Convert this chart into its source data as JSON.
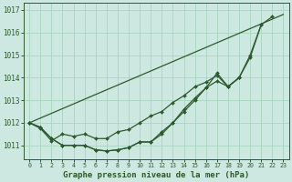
{
  "title": "Graphe pression niveau de la mer (hPa)",
  "background_color": "#cce8e0",
  "grid_color": "#aad4c0",
  "line_color": "#2d5a2d",
  "marker_color": "#2d5a2d",
  "xlim": [
    -0.5,
    23.5
  ],
  "ylim": [
    1010.4,
    1017.3
  ],
  "yticks": [
    1011,
    1012,
    1013,
    1014,
    1015,
    1016,
    1017
  ],
  "xticks": [
    0,
    1,
    2,
    3,
    4,
    5,
    6,
    7,
    8,
    9,
    10,
    11,
    12,
    13,
    14,
    15,
    16,
    17,
    18,
    19,
    20,
    21,
    22,
    23
  ],
  "series": [
    {
      "x": [
        0,
        1,
        2,
        3,
        4,
        5,
        6,
        7,
        8,
        9,
        10,
        11,
        12,
        13,
        14,
        15,
        16,
        17,
        18,
        19,
        20,
        21,
        22
      ],
      "y": [
        1012.0,
        1011.8,
        1011.3,
        1011.0,
        1011.0,
        1011.0,
        1010.8,
        1010.75,
        1010.8,
        1010.9,
        1011.15,
        1011.15,
        1011.5,
        1012.0,
        1012.5,
        1013.0,
        1013.55,
        1013.85,
        1013.6,
        1014.0,
        1015.0,
        1016.35,
        1016.7
      ]
    },
    {
      "x": [
        0,
        1,
        2,
        3,
        4,
        5,
        6,
        7,
        8,
        9,
        10,
        11,
        12,
        13,
        14,
        15,
        16,
        17,
        18,
        19,
        20,
        21
      ],
      "y": [
        1012.0,
        1011.8,
        1011.3,
        1011.0,
        1011.0,
        1011.0,
        1010.8,
        1010.75,
        1010.8,
        1010.9,
        1011.15,
        1011.15,
        1011.6,
        1012.0,
        1012.6,
        1013.1,
        1013.55,
        1014.2,
        1013.6,
        1014.0,
        1014.9,
        1016.35
      ]
    },
    {
      "x": [
        0,
        1,
        2,
        3,
        4,
        5,
        6,
        7,
        8,
        9,
        10,
        11,
        12,
        13,
        14,
        15,
        16,
        17,
        18,
        19
      ],
      "y": [
        1012.0,
        1011.75,
        1011.2,
        1011.5,
        1011.4,
        1011.5,
        1011.3,
        1011.3,
        1011.6,
        1011.7,
        1012.0,
        1012.3,
        1012.5,
        1012.9,
        1013.2,
        1013.6,
        1013.8,
        1014.1,
        1013.6,
        1014.0
      ]
    },
    {
      "x": [
        0,
        23
      ],
      "y": [
        1012.0,
        1016.8
      ]
    }
  ]
}
